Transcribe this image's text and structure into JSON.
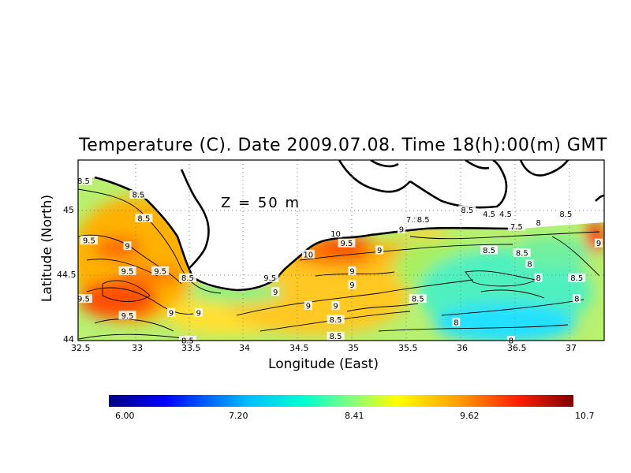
{
  "title": "Temperature (C). Date 2009.07.08. Time 18(h):00(m) GMT",
  "depth_label": "Z = 50 m",
  "xlabel": "Longitude (East)",
  "ylabel": "Latitude (North)",
  "x_ticks": [
    "32.5",
    "33",
    "33.5",
    "34",
    "34.5",
    "35",
    "35.5",
    "36",
    "36.5",
    "37"
  ],
  "y_ticks": [
    "44",
    "44.5",
    "45"
  ],
  "colorbar": {
    "labels": [
      "6.00",
      "7.20",
      "8.41",
      "9.62",
      "10.7"
    ],
    "colors": [
      "#000080",
      "#0000ff",
      "#00bfff",
      "#00ffd0",
      "#80ff80",
      "#ffff00",
      "#ffa000",
      "#ff2000",
      "#800000"
    ]
  },
  "chart_data": {
    "type": "heatmap",
    "title": "Temperature (C). Date 2009.07.08. Time 18(h):00(m) GMT",
    "xlabel": "Longitude (East)",
    "ylabel": "Latitude (North)",
    "xlim": [
      32.5,
      37.3
    ],
    "ylim": [
      44.0,
      45.3
    ],
    "value_range": [
      6.0,
      10.7
    ],
    "contour_labels": [
      {
        "text": "8.5",
        "lon": 32.55,
        "lat": 45.15
      },
      {
        "text": "8.5",
        "lon": 33.05,
        "lat": 45.05
      },
      {
        "text": "8.5",
        "lon": 33.1,
        "lat": 44.88
      },
      {
        "text": "9.5",
        "lon": 32.6,
        "lat": 44.72
      },
      {
        "text": "9",
        "lon": 32.95,
        "lat": 44.68
      },
      {
        "text": "9.5",
        "lon": 32.95,
        "lat": 44.5
      },
      {
        "text": "9.5",
        "lon": 33.25,
        "lat": 44.5
      },
      {
        "text": "8.5",
        "lon": 33.5,
        "lat": 44.45
      },
      {
        "text": "9.5",
        "lon": 32.55,
        "lat": 44.3
      },
      {
        "text": "9.5",
        "lon": 32.95,
        "lat": 44.18
      },
      {
        "text": "9",
        "lon": 33.35,
        "lat": 44.2
      },
      {
        "text": "9",
        "lon": 33.6,
        "lat": 44.2
      },
      {
        "text": "8.5",
        "lon": 33.5,
        "lat": 44.0
      },
      {
        "text": "9.5",
        "lon": 34.25,
        "lat": 44.45
      },
      {
        "text": "9",
        "lon": 34.3,
        "lat": 44.35
      },
      {
        "text": "10",
        "lon": 34.6,
        "lat": 44.62
      },
      {
        "text": "10",
        "lon": 34.85,
        "lat": 44.77
      },
      {
        "text": "9.5",
        "lon": 34.95,
        "lat": 44.7
      },
      {
        "text": "9",
        "lon": 35.25,
        "lat": 44.65
      },
      {
        "text": "9",
        "lon": 35,
        "lat": 44.5
      },
      {
        "text": "9",
        "lon": 35,
        "lat": 44.4
      },
      {
        "text": "9",
        "lon": 34.6,
        "lat": 44.25
      },
      {
        "text": "9",
        "lon": 34.85,
        "lat": 44.25
      },
      {
        "text": "8.5",
        "lon": 34.85,
        "lat": 44.15
      },
      {
        "text": "8.5",
        "lon": 34.85,
        "lat": 44.03
      },
      {
        "text": "9",
        "lon": 35.45,
        "lat": 44.8
      },
      {
        "text": "7.5",
        "lon": 35.55,
        "lat": 44.87
      },
      {
        "text": "8.5",
        "lon": 35.65,
        "lat": 44.87
      },
      {
        "text": "8.5",
        "lon": 36.05,
        "lat": 44.94
      },
      {
        "text": "4.5",
        "lon": 36.25,
        "lat": 44.91
      },
      {
        "text": "4.5",
        "lon": 36.4,
        "lat": 44.91
      },
      {
        "text": "7.5",
        "lon": 36.5,
        "lat": 44.82
      },
      {
        "text": "8",
        "lon": 36.7,
        "lat": 44.85
      },
      {
        "text": "8.5",
        "lon": 36.95,
        "lat": 44.91
      },
      {
        "text": "8.5",
        "lon": 36.25,
        "lat": 44.65
      },
      {
        "text": "8.5",
        "lon": 36.55,
        "lat": 44.63
      },
      {
        "text": "8",
        "lon": 36.62,
        "lat": 44.55
      },
      {
        "text": "8",
        "lon": 36.7,
        "lat": 44.45
      },
      {
        "text": "8.5",
        "lon": 37.05,
        "lat": 44.45
      },
      {
        "text": "8",
        "lon": 37.05,
        "lat": 44.3
      },
      {
        "text": "9",
        "lon": 37.25,
        "lat": 44.7
      },
      {
        "text": "8.5",
        "lon": 35.6,
        "lat": 44.3
      },
      {
        "text": "8",
        "lon": 35.95,
        "lat": 44.13
      },
      {
        "text": "8",
        "lon": 36.45,
        "lat": 44.0
      }
    ]
  }
}
